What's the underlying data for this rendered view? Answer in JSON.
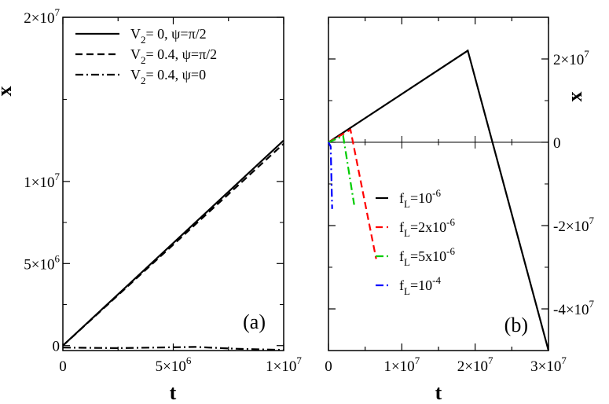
{
  "chart_data": [
    {
      "type": "line",
      "panel_label": "(a)",
      "xlabel": "t",
      "ylabel": "x",
      "xlim": [
        0,
        10000000
      ],
      "ylim": [
        -300000,
        20000000
      ],
      "x_ticks": [
        {
          "value": 0,
          "label": "0"
        },
        {
          "value": 5000000,
          "label": "5×10",
          "exp": "6"
        },
        {
          "value": 10000000,
          "label": "1×10",
          "exp": "7"
        }
      ],
      "y_ticks": [
        {
          "value": 0,
          "label": "0"
        },
        {
          "value": 5000000,
          "label": "5×10",
          "exp": "6"
        },
        {
          "value": 10000000,
          "label": "1×10",
          "exp": "7"
        },
        {
          "value": 20000000,
          "label": "2×10",
          "exp": "7"
        }
      ],
      "legend_position": "top-left",
      "series": [
        {
          "name": "V2=0, ψ=π/2",
          "legend_main": "V",
          "legend_sub": "2",
          "legend_rest": "= 0,  ψ=π/2",
          "style": "solid",
          "x": [
            0,
            10000000
          ],
          "y": [
            0,
            12500000
          ]
        },
        {
          "name": "V2=0.4, ψ=π/2",
          "legend_main": "V",
          "legend_sub": "2",
          "legend_rest": "= 0.4,  ψ=π/2",
          "style": "dashed",
          "x": [
            0,
            10000000
          ],
          "y": [
            0,
            12300000
          ]
        },
        {
          "name": "V2=0.4, ψ=0",
          "legend_main": "V",
          "legend_sub": "2",
          "legend_rest": "= 0.4,  ψ=0",
          "style": "dashdot",
          "x": [
            0,
            2500000,
            6000000,
            8000000,
            10000000
          ],
          "y": [
            -120000,
            -150000,
            -80000,
            -200000,
            -260000
          ]
        }
      ]
    },
    {
      "type": "line",
      "panel_label": "(b)",
      "xlabel": "t",
      "ylabel": "x",
      "xlim": [
        0,
        30000000
      ],
      "ylim": [
        -50000000,
        30000000
      ],
      "x_ticks": [
        {
          "value": 0,
          "label": "0"
        },
        {
          "value": 10000000,
          "label": "1×10",
          "exp": "7"
        },
        {
          "value": 20000000,
          "label": "2×10",
          "exp": "7"
        },
        {
          "value": 30000000,
          "label": "3×10",
          "exp": "7"
        }
      ],
      "y_ticks": [
        {
          "value": 20000000,
          "label": "2×10",
          "exp": "7"
        },
        {
          "value": 0,
          "label": "0"
        },
        {
          "value": -20000000,
          "label": "-2×10",
          "exp": "7"
        },
        {
          "value": -40000000,
          "label": "-4×10",
          "exp": "7"
        }
      ],
      "legend_position": "center",
      "series": [
        {
          "name": "fL=10^-6",
          "legend_main": "f",
          "legend_sub": "L",
          "legend_rest": "=10",
          "legend_exp": "-6",
          "style": "solid",
          "color": "#000000",
          "x": [
            0,
            19000000,
            30000000
          ],
          "y": [
            0,
            22000000,
            -50000000
          ]
        },
        {
          "name": "fL=2x10^-6",
          "legend_main": "f",
          "legend_sub": "L",
          "legend_rest": "=2x10",
          "legend_exp": "-6",
          "style": "dashed",
          "color": "#ff0000",
          "x": [
            0,
            3000000,
            6500000
          ],
          "y": [
            0,
            3000000,
            -28000000
          ]
        },
        {
          "name": "fL=5x10^-6",
          "legend_main": "f",
          "legend_sub": "L",
          "legend_rest": "=5x10",
          "legend_exp": "-6",
          "style": "dashdot",
          "color": "#00cc00",
          "x": [
            0,
            2000000,
            3500000
          ],
          "y": [
            0,
            1500000,
            -15000000
          ]
        },
        {
          "name": "fL=10^-4",
          "legend_main": "f",
          "legend_sub": "L",
          "legend_rest": "=10",
          "legend_exp": "-4",
          "style": "dashdot",
          "color": "#0000ff",
          "x": [
            0,
            300000,
            500000
          ],
          "y": [
            0,
            -1000000,
            -16000000
          ]
        }
      ]
    }
  ]
}
